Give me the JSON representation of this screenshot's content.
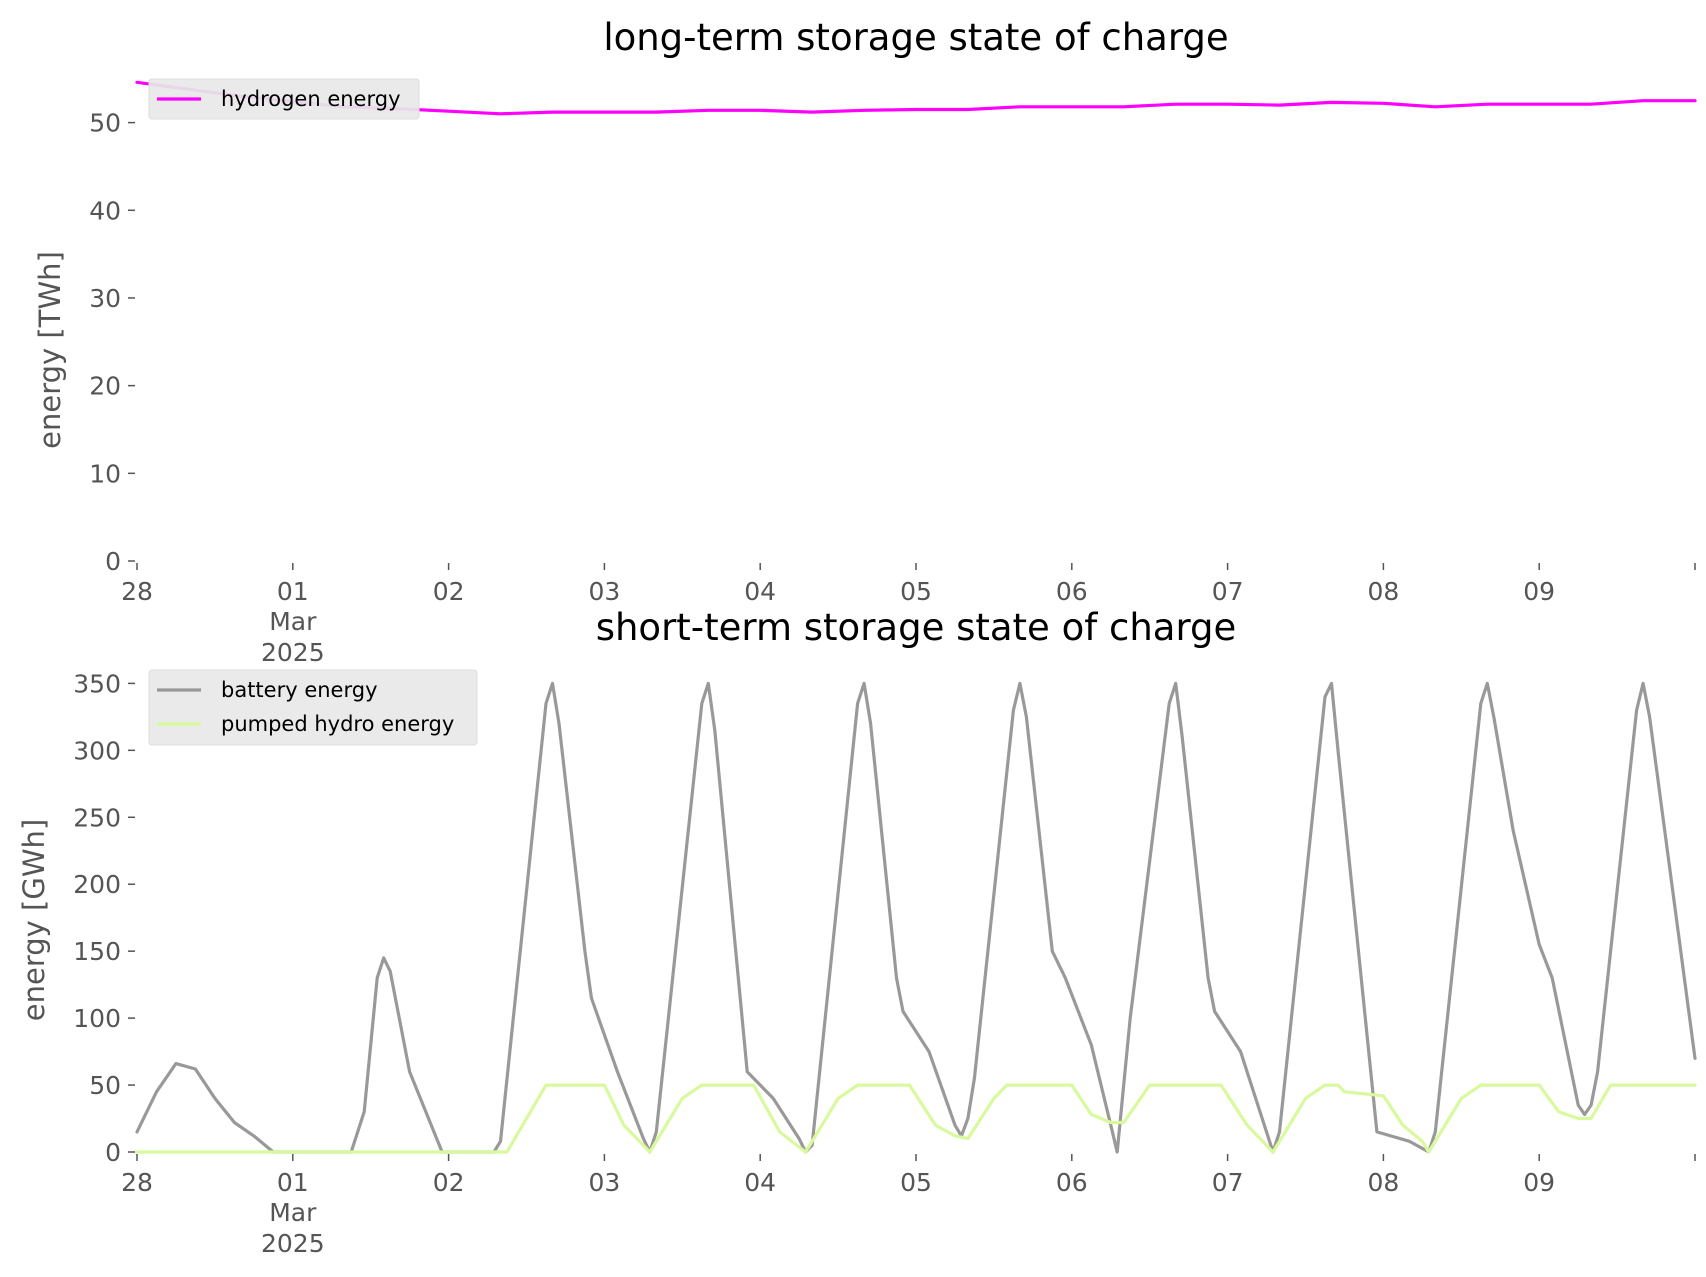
{
  "chart_data": [
    {
      "type": "line",
      "title": "long-term storage state of charge",
      "ylabel": "energy [TWh]",
      "ylim": [
        0,
        56
      ],
      "yticks": [
        "0",
        "10",
        "20",
        "30",
        "40",
        "50"
      ],
      "xticks": [
        {
          "label": "28",
          "date": "2025-02-28"
        },
        {
          "label": "01",
          "date": "2025-03-01",
          "extra": [
            "Mar",
            "2025"
          ]
        },
        {
          "label": "02",
          "date": "2025-03-02"
        },
        {
          "label": "03",
          "date": "2025-03-03"
        },
        {
          "label": "04",
          "date": "2025-03-04"
        },
        {
          "label": "05",
          "date": "2025-03-05"
        },
        {
          "label": "06",
          "date": "2025-03-06"
        },
        {
          "label": "07",
          "date": "2025-03-07"
        },
        {
          "label": "08",
          "date": "2025-03-08"
        },
        {
          "label": "09",
          "date": "2025-03-09"
        }
      ],
      "xlim": [
        "2025-02-28 00:00",
        "2025-03-10 00:00"
      ],
      "legend_placement": "top-left",
      "grid": false,
      "series": [
        {
          "name": "hydrogen energy",
          "color": "#ff00ff",
          "points": [
            [
              "2025-02-28 00:00",
              54.6
            ],
            [
              "2025-02-28 08:00",
              53.8
            ],
            [
              "2025-02-28 16:00",
              53.0
            ],
            [
              "2025-03-01 00:00",
              52.4
            ],
            [
              "2025-03-01 08:00",
              51.8
            ],
            [
              "2025-03-01 16:00",
              51.6
            ],
            [
              "2025-03-02 00:00",
              51.3
            ],
            [
              "2025-03-02 08:00",
              51.0
            ],
            [
              "2025-03-02 16:00",
              51.2
            ],
            [
              "2025-03-03 00:00",
              51.2
            ],
            [
              "2025-03-03 08:00",
              51.2
            ],
            [
              "2025-03-03 16:00",
              51.4
            ],
            [
              "2025-03-04 00:00",
              51.4
            ],
            [
              "2025-03-04 08:00",
              51.2
            ],
            [
              "2025-03-04 16:00",
              51.4
            ],
            [
              "2025-03-05 00:00",
              51.5
            ],
            [
              "2025-03-05 08:00",
              51.5
            ],
            [
              "2025-03-05 16:00",
              51.8
            ],
            [
              "2025-03-06 00:00",
              51.8
            ],
            [
              "2025-03-06 08:00",
              51.8
            ],
            [
              "2025-03-06 16:00",
              52.1
            ],
            [
              "2025-03-07 00:00",
              52.1
            ],
            [
              "2025-03-07 08:00",
              52.0
            ],
            [
              "2025-03-07 16:00",
              52.3
            ],
            [
              "2025-03-08 00:00",
              52.2
            ],
            [
              "2025-03-08 08:00",
              51.8
            ],
            [
              "2025-03-08 16:00",
              52.1
            ],
            [
              "2025-03-09 00:00",
              52.1
            ],
            [
              "2025-03-09 08:00",
              52.1
            ],
            [
              "2025-03-09 16:00",
              52.5
            ],
            [
              "2025-03-10 00:00",
              52.5
            ]
          ]
        }
      ]
    },
    {
      "type": "line",
      "title": "short-term storage state of charge",
      "ylabel": "energy [GWh]",
      "ylim": [
        0,
        360
      ],
      "yticks": [
        "0",
        "50",
        "100",
        "150",
        "200",
        "250",
        "300",
        "350"
      ],
      "xticks": [
        {
          "label": "28",
          "date": "2025-02-28"
        },
        {
          "label": "01",
          "date": "2025-03-01",
          "extra": [
            "Mar",
            "2025"
          ]
        },
        {
          "label": "02",
          "date": "2025-03-02"
        },
        {
          "label": "03",
          "date": "2025-03-03"
        },
        {
          "label": "04",
          "date": "2025-03-04"
        },
        {
          "label": "05",
          "date": "2025-03-05"
        },
        {
          "label": "06",
          "date": "2025-03-06"
        },
        {
          "label": "07",
          "date": "2025-03-07"
        },
        {
          "label": "08",
          "date": "2025-03-08"
        },
        {
          "label": "09",
          "date": "2025-03-09"
        }
      ],
      "xlim": [
        "2025-02-28 00:00",
        "2025-03-10 00:00"
      ],
      "legend_placement": "top-left",
      "grid": false,
      "series": [
        {
          "name": "battery energy",
          "color": "#999999",
          "points": [
            [
              "2025-02-28 00:00",
              15
            ],
            [
              "2025-02-28 03:00",
              45
            ],
            [
              "2025-02-28 06:00",
              66
            ],
            [
              "2025-02-28 09:00",
              62
            ],
            [
              "2025-02-28 12:00",
              40
            ],
            [
              "2025-02-28 15:00",
              22
            ],
            [
              "2025-02-28 18:00",
              12
            ],
            [
              "2025-02-28 21:00",
              0
            ],
            [
              "2025-03-01 09:00",
              0
            ],
            [
              "2025-03-01 11:00",
              30
            ],
            [
              "2025-03-01 13:00",
              130
            ],
            [
              "2025-03-01 14:00",
              145
            ],
            [
              "2025-03-01 15:00",
              135
            ],
            [
              "2025-03-01 18:00",
              60
            ],
            [
              "2025-03-01 23:00",
              0
            ],
            [
              "2025-03-02 07:00",
              0
            ],
            [
              "2025-03-02 08:00",
              8
            ],
            [
              "2025-03-02 15:00",
              335
            ],
            [
              "2025-03-02 16:00",
              350
            ],
            [
              "2025-03-02 17:00",
              320
            ],
            [
              "2025-03-02 21:00",
              150
            ],
            [
              "2025-03-02 22:00",
              115
            ],
            [
              "2025-03-03 02:00",
              60
            ],
            [
              "2025-03-03 06:00",
              10
            ],
            [
              "2025-03-03 07:00",
              0
            ],
            [
              "2025-03-03 08:00",
              15
            ],
            [
              "2025-03-03 15:00",
              335
            ],
            [
              "2025-03-03 16:00",
              350
            ],
            [
              "2025-03-03 17:00",
              315
            ],
            [
              "2025-03-03 22:00",
              60
            ],
            [
              "2025-03-04 02:00",
              40
            ],
            [
              "2025-03-04 06:00",
              10
            ],
            [
              "2025-03-04 07:00",
              0
            ],
            [
              "2025-03-04 08:00",
              5
            ],
            [
              "2025-03-04 15:00",
              335
            ],
            [
              "2025-03-04 16:00",
              350
            ],
            [
              "2025-03-04 17:00",
              320
            ],
            [
              "2025-03-04 21:00",
              130
            ],
            [
              "2025-03-04 22:00",
              105
            ],
            [
              "2025-03-05 02:00",
              75
            ],
            [
              "2025-03-05 06:00",
              20
            ],
            [
              "2025-03-05 07:00",
              12
            ],
            [
              "2025-03-05 08:00",
              25
            ],
            [
              "2025-03-05 09:00",
              55
            ],
            [
              "2025-03-05 15:00",
              330
            ],
            [
              "2025-03-05 16:00",
              350
            ],
            [
              "2025-03-05 17:00",
              325
            ],
            [
              "2025-03-05 21:00",
              150
            ],
            [
              "2025-03-05 23:00",
              130
            ],
            [
              "2025-03-06 03:00",
              80
            ],
            [
              "2025-03-06 06:00",
              20
            ],
            [
              "2025-03-06 07:00",
              0
            ],
            [
              "2025-03-06 09:00",
              100
            ],
            [
              "2025-03-06 15:00",
              335
            ],
            [
              "2025-03-06 16:00",
              350
            ],
            [
              "2025-03-06 17:00",
              310
            ],
            [
              "2025-03-06 21:00",
              130
            ],
            [
              "2025-03-06 22:00",
              105
            ],
            [
              "2025-03-07 02:00",
              75
            ],
            [
              "2025-03-07 06:00",
              15
            ],
            [
              "2025-03-07 07:00",
              0
            ],
            [
              "2025-03-07 08:00",
              15
            ],
            [
              "2025-03-07 15:00",
              340
            ],
            [
              "2025-03-07 16:00",
              350
            ],
            [
              "2025-03-07 17:00",
              300
            ],
            [
              "2025-03-07 23:00",
              15
            ],
            [
              "2025-03-08 04:00",
              8
            ],
            [
              "2025-03-08 07:00",
              0
            ],
            [
              "2025-03-08 08:00",
              15
            ],
            [
              "2025-03-08 15:00",
              335
            ],
            [
              "2025-03-08 16:00",
              350
            ],
            [
              "2025-03-08 17:00",
              325
            ],
            [
              "2025-03-08 20:00",
              240
            ],
            [
              "2025-03-08 24:00",
              155
            ],
            [
              "2025-03-09 02:00",
              130
            ],
            [
              "2025-03-09 06:00",
              35
            ],
            [
              "2025-03-09 07:00",
              28
            ],
            [
              "2025-03-09 08:00",
              35
            ],
            [
              "2025-03-09 09:00",
              60
            ],
            [
              "2025-03-09 15:00",
              330
            ],
            [
              "2025-03-09 16:00",
              350
            ],
            [
              "2025-03-09 17:00",
              325
            ],
            [
              "2025-03-10 00:00",
              70
            ]
          ]
        },
        {
          "name": "pumped hydro energy",
          "color": "#d9f99d",
          "points": [
            [
              "2025-02-28 00:00",
              0
            ],
            [
              "2025-03-02 09:00",
              0
            ],
            [
              "2025-03-02 15:00",
              50
            ],
            [
              "2025-03-02 24:00",
              50
            ],
            [
              "2025-03-03 03:00",
              20
            ],
            [
              "2025-03-03 06:00",
              5
            ],
            [
              "2025-03-03 07:00",
              0
            ],
            [
              "2025-03-03 12:00",
              40
            ],
            [
              "2025-03-03 15:00",
              50
            ],
            [
              "2025-03-03 23:00",
              50
            ],
            [
              "2025-03-04 03:00",
              15
            ],
            [
              "2025-03-04 07:00",
              0
            ],
            [
              "2025-03-04 12:00",
              40
            ],
            [
              "2025-03-04 15:00",
              50
            ],
            [
              "2025-03-04 23:00",
              50
            ],
            [
              "2025-03-05 03:00",
              20
            ],
            [
              "2025-03-05 06:00",
              12
            ],
            [
              "2025-03-05 08:00",
              10
            ],
            [
              "2025-03-05 12:00",
              40
            ],
            [
              "2025-03-05 14:00",
              50
            ],
            [
              "2025-03-05 24:00",
              50
            ],
            [
              "2025-03-06 03:00",
              28
            ],
            [
              "2025-03-06 06:00",
              22
            ],
            [
              "2025-03-06 08:00",
              22
            ],
            [
              "2025-03-06 12:00",
              50
            ],
            [
              "2025-03-06 23:00",
              50
            ],
            [
              "2025-03-07 03:00",
              20
            ],
            [
              "2025-03-07 06:00",
              5
            ],
            [
              "2025-03-07 07:00",
              0
            ],
            [
              "2025-03-07 12:00",
              40
            ],
            [
              "2025-03-07 15:00",
              50
            ],
            [
              "2025-03-07 17:00",
              50
            ],
            [
              "2025-03-07 18:00",
              45
            ],
            [
              "2025-03-08 00:00",
              42
            ],
            [
              "2025-03-08 03:00",
              20
            ],
            [
              "2025-03-08 06:00",
              8
            ],
            [
              "2025-03-08 07:00",
              0
            ],
            [
              "2025-03-08 12:00",
              40
            ],
            [
              "2025-03-08 15:00",
              50
            ],
            [
              "2025-03-09 00:00",
              50
            ],
            [
              "2025-03-09 03:00",
              30
            ],
            [
              "2025-03-09 06:00",
              25
            ],
            [
              "2025-03-09 08:00",
              25
            ],
            [
              "2025-03-09 11:00",
              50
            ],
            [
              "2025-03-10 00:00",
              50
            ]
          ]
        }
      ]
    }
  ]
}
